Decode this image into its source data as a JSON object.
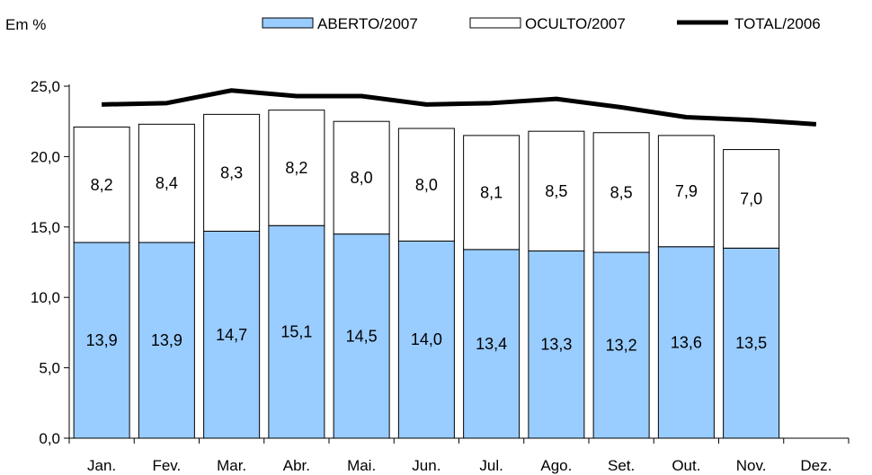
{
  "chart_data": {
    "type": "bar",
    "stacked": true,
    "unit_label": "Em %",
    "categories": [
      "Jan.",
      "Fev.",
      "Mar.",
      "Abr.",
      "Mai.",
      "Jun.",
      "Jul.",
      "Ago.",
      "Set.",
      "Out.",
      "Nov.",
      "Dez."
    ],
    "series": [
      {
        "name": "ABERTO/2007",
        "type": "bar",
        "color": "#99ccff",
        "values": [
          13.9,
          13.9,
          14.7,
          15.1,
          14.5,
          14.0,
          13.4,
          13.3,
          13.2,
          13.6,
          13.5,
          null
        ],
        "labels": [
          "13,9",
          "13,9",
          "14,7",
          "15,1",
          "14,5",
          "14,0",
          "13,4",
          "13,3",
          "13,2",
          "13,6",
          "13,5",
          ""
        ]
      },
      {
        "name": "OCULTO/2007",
        "type": "bar",
        "color": "#ffffff",
        "values": [
          8.2,
          8.4,
          8.3,
          8.2,
          8.0,
          8.0,
          8.1,
          8.5,
          8.5,
          7.9,
          7.0,
          null
        ],
        "labels": [
          "8,2",
          "8,4",
          "8,3",
          "8,2",
          "8,0",
          "8,0",
          "8,1",
          "8,5",
          "8,5",
          "7,9",
          "7,0",
          ""
        ]
      },
      {
        "name": "TOTAL/2006",
        "type": "line",
        "color": "#000000",
        "values": [
          23.7,
          23.8,
          24.7,
          24.3,
          24.3,
          23.7,
          23.8,
          24.1,
          23.5,
          22.8,
          22.6,
          22.3
        ]
      }
    ],
    "yticks": [
      "0,0",
      "5,0",
      "10,0",
      "15,0",
      "20,0",
      "25,0"
    ],
    "ylim": [
      0,
      25
    ],
    "grid": false,
    "legend": "top"
  }
}
